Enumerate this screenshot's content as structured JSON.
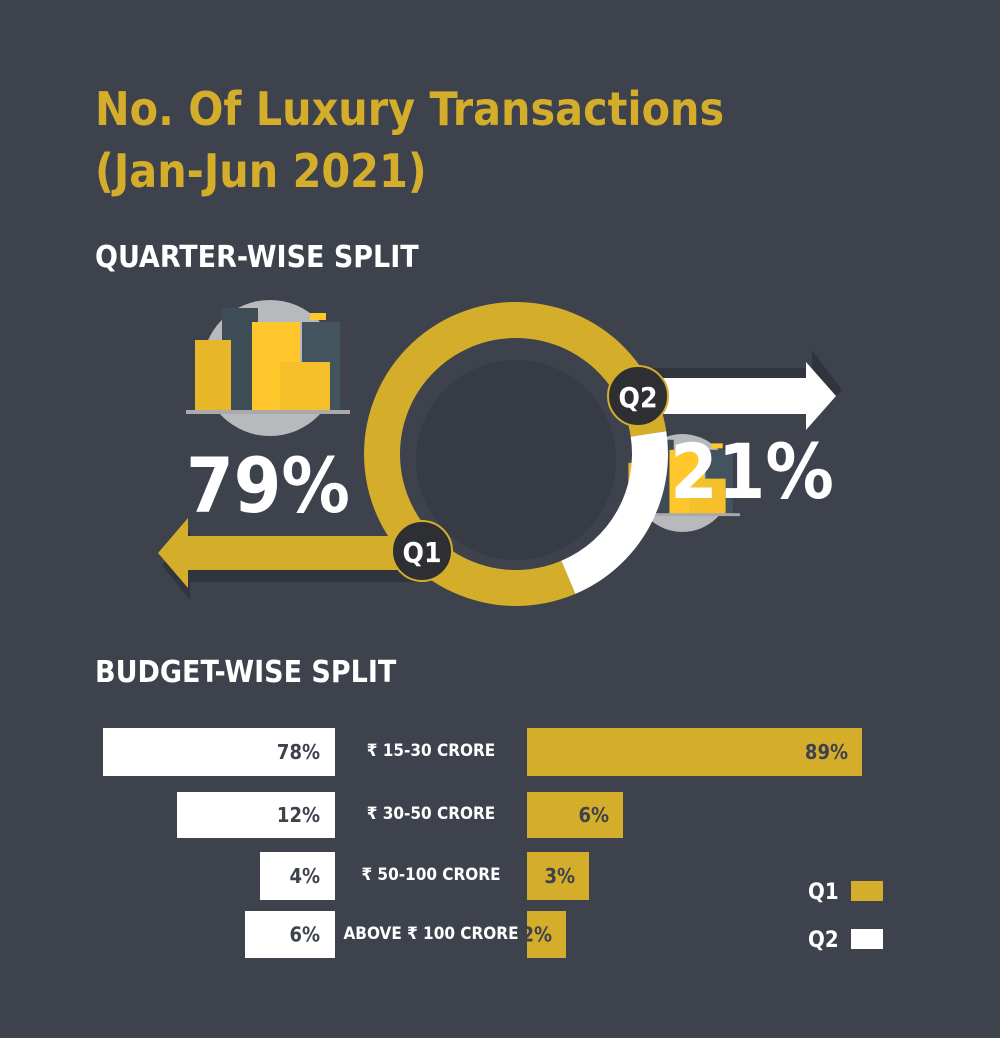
{
  "title_line1": "No. Of Luxury Transactions",
  "title_line2": "(Jan-Jun 2021)",
  "colors": {
    "background": "#3d424d",
    "gold": "#d4ad2b",
    "white": "#ffffff"
  },
  "chart_data": [
    {
      "type": "pie",
      "title": "QUARTER-WISE SPLIT",
      "style": "donut",
      "categories": [
        "Q1",
        "Q2"
      ],
      "values": [
        79,
        21
      ],
      "labels": [
        "79%",
        "21%"
      ],
      "colors": [
        "#d4ad2b",
        "#ffffff"
      ]
    },
    {
      "type": "bar",
      "title": "BUDGET-WISE SPLIT",
      "orientation": "horizontal-butterfly",
      "categories": [
        "₹ 15-30 CRORE",
        "₹ 30-50 CRORE",
        "₹ 50-100 CRORE",
        "ABOVE ₹ 100 CRORE"
      ],
      "series": [
        {
          "name": "Q2",
          "side": "left",
          "color": "#ffffff",
          "values": [
            78,
            12,
            4,
            6
          ],
          "labels": [
            "78%",
            "12%",
            "4%",
            "6%"
          ]
        },
        {
          "name": "Q1",
          "side": "right",
          "color": "#d4ad2b",
          "values": [
            89,
            6,
            3,
            2
          ],
          "labels": [
            "89%",
            "6%",
            "3%",
            "2%"
          ]
        }
      ],
      "legend": {
        "placement": "bottom-right",
        "entries": [
          "Q1",
          "Q2"
        ]
      }
    }
  ]
}
